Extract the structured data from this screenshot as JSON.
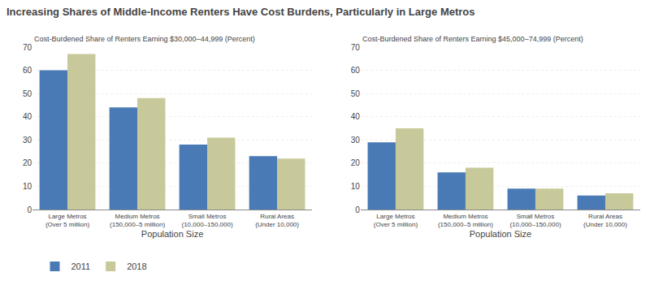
{
  "chart_data": [
    {
      "type": "bar",
      "title": "Increasing Shares of Middle-Income Renters Have Cost Burdens, Particularly in Large Metros",
      "subtitle": "Cost-Burdened Share of Renters Earning $30,000–44,999 (Percent)",
      "xlabel": "Population Size",
      "categories": [
        "Large Metros\n(Over 5 million)",
        "Medium Metros\n(150,000–5 million)",
        "Small Metros\n(10,000–150,000)",
        "Rural Areas\n(Under 10,000)"
      ],
      "series": [
        {
          "name": "2011",
          "color": "#4a7ab5",
          "values": [
            60,
            44,
            28,
            23
          ]
        },
        {
          "name": "2018",
          "color": "#c8c99a",
          "values": [
            67,
            48,
            31,
            22
          ]
        }
      ],
      "ylim": [
        0,
        70
      ],
      "yticks": [
        0,
        10,
        20,
        30,
        40,
        50,
        60,
        70
      ],
      "grid": true
    },
    {
      "type": "bar",
      "subtitle": "Cost-Burdened Share of Renters Earning $45,000–74,999 (Percent)",
      "xlabel": "Population Size",
      "categories": [
        "Large Metros\n(Over 5 million)",
        "Medium Metros\n(150,000–5 million)",
        "Small Metros\n(10,000–150,000)",
        "Rural Areas\n(Under 10,000)"
      ],
      "series": [
        {
          "name": "2011",
          "color": "#4a7ab5",
          "values": [
            29,
            16,
            9,
            6
          ]
        },
        {
          "name": "2018",
          "color": "#c8c99a",
          "values": [
            35,
            18,
            9,
            7
          ]
        }
      ],
      "ylim": [
        0,
        70
      ],
      "yticks": [
        0,
        10,
        20,
        30,
        40,
        50,
        60,
        70
      ],
      "grid": true
    }
  ]
}
